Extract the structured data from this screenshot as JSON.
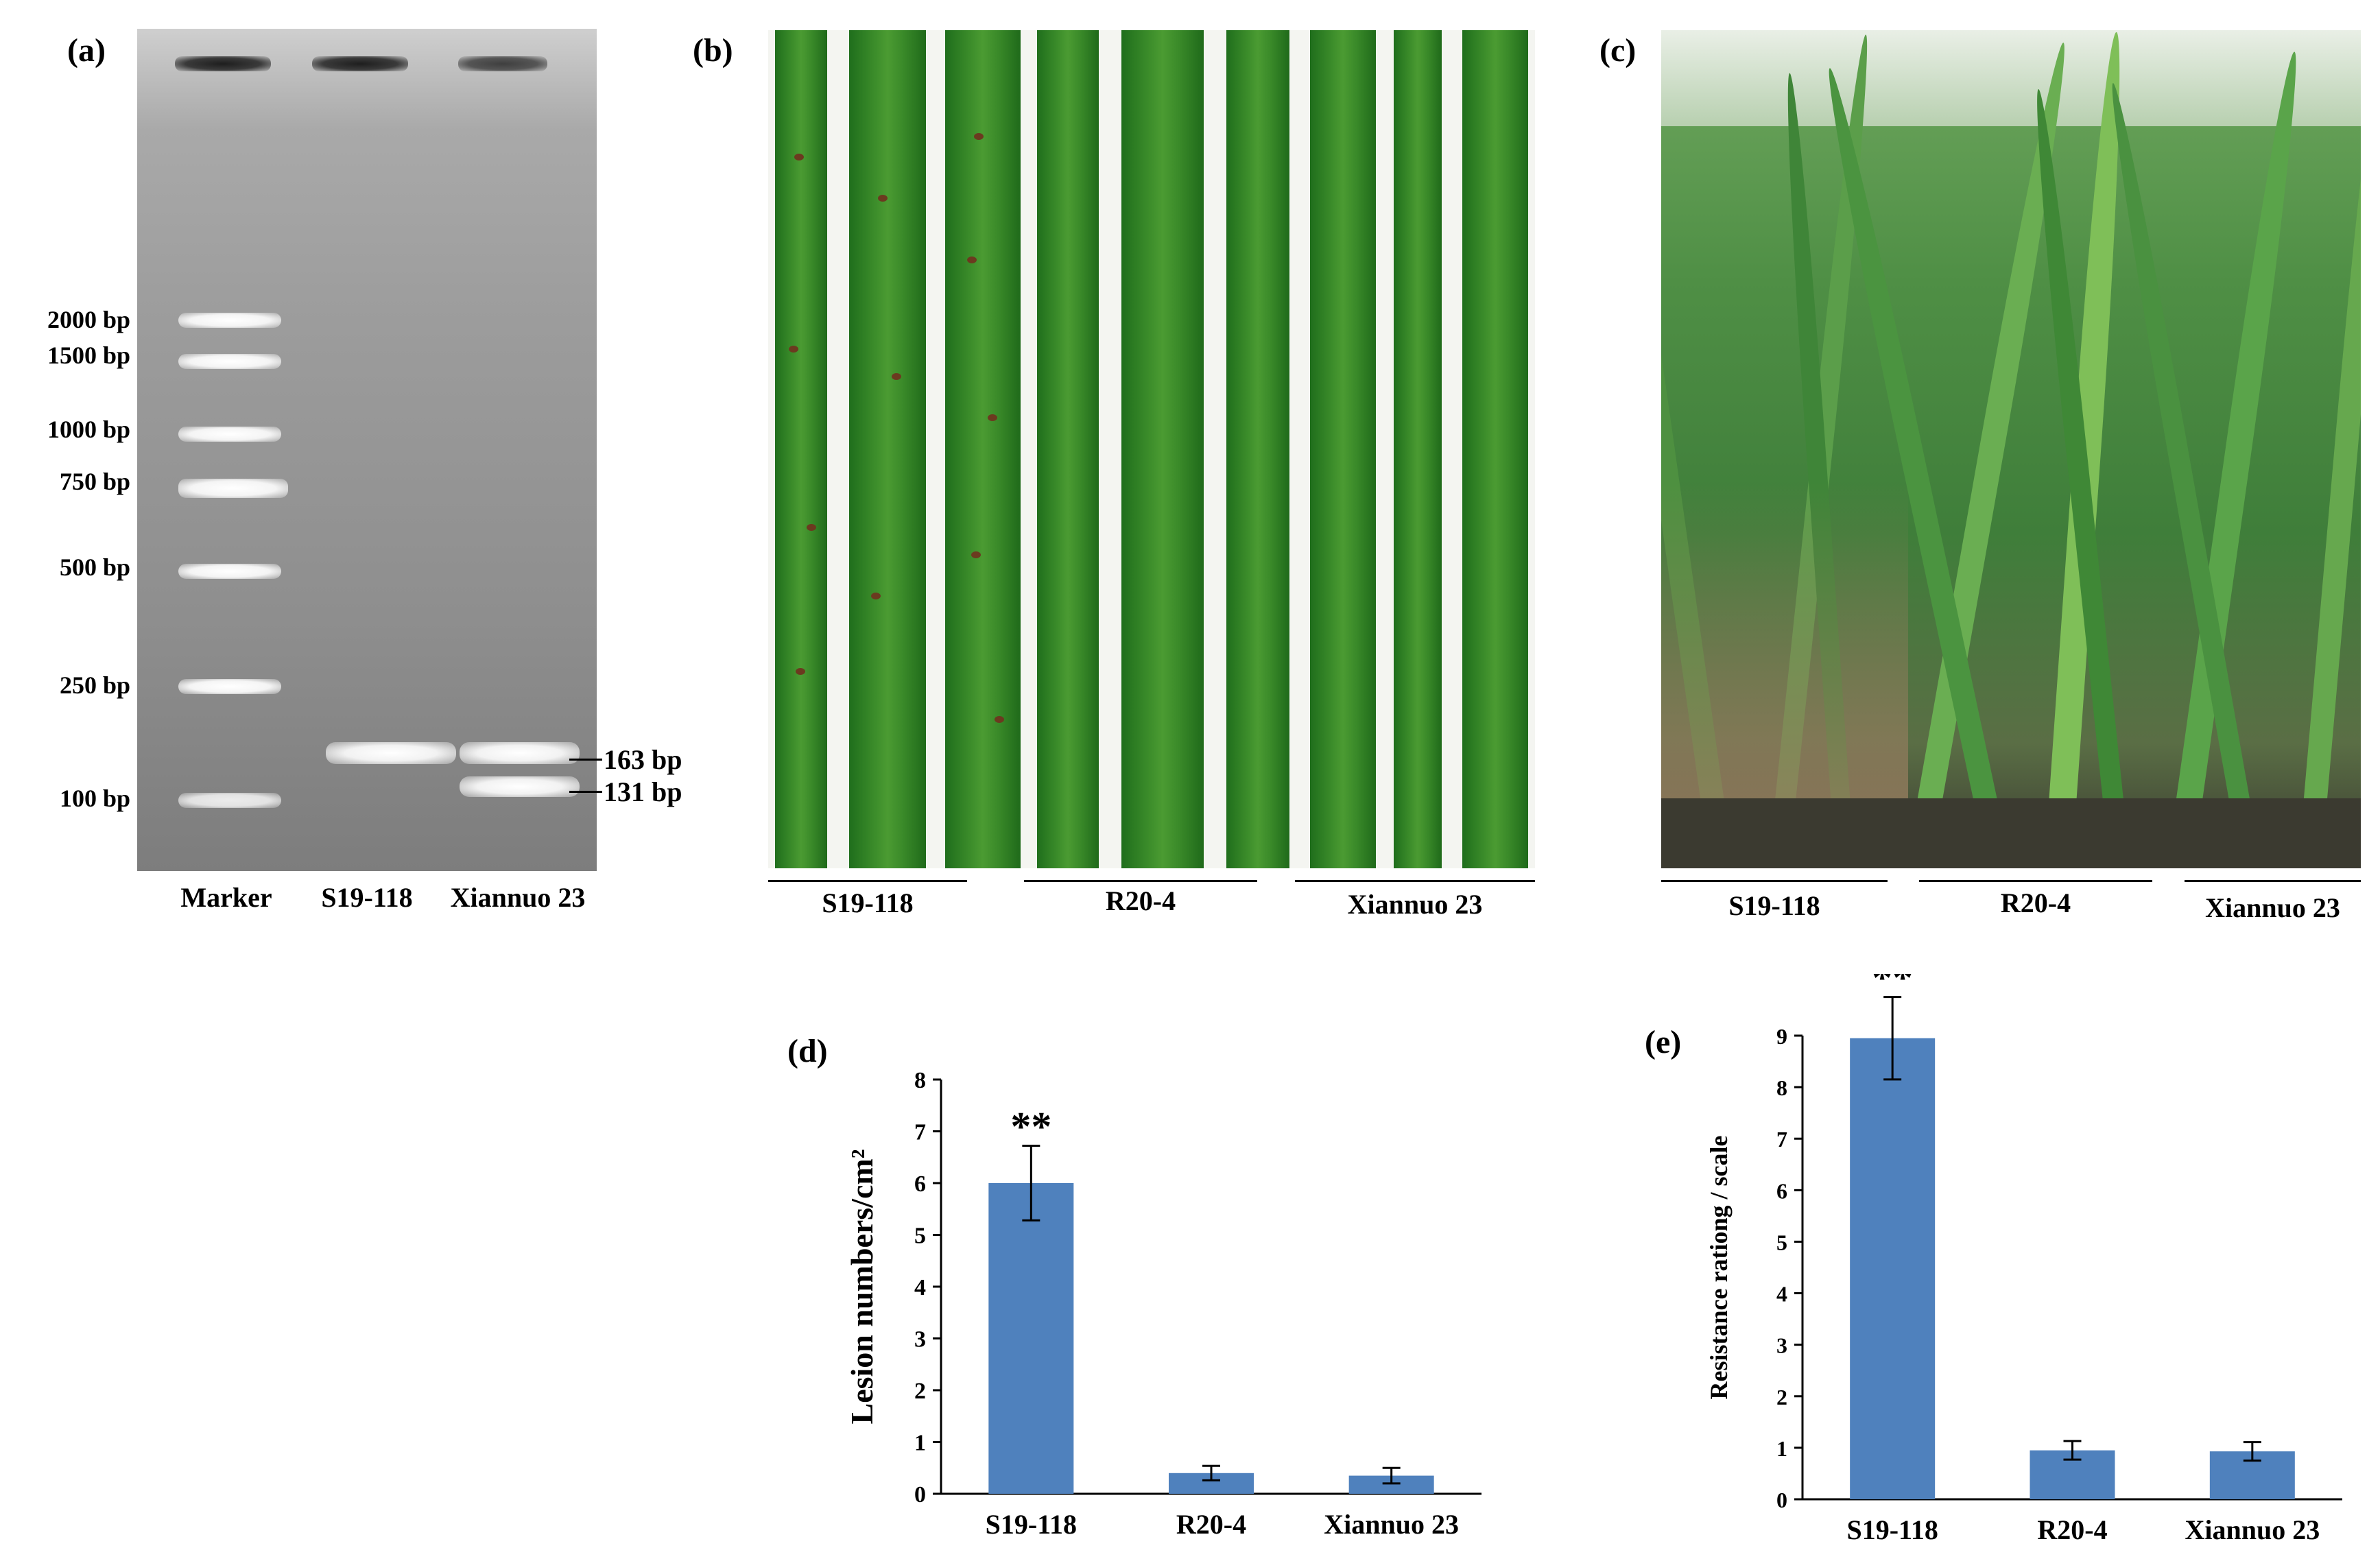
{
  "panels": {
    "a": {
      "label": "(a)",
      "marker_sizes": [
        "2000 bp",
        "1500 bp",
        "1000 bp",
        "750 bp",
        "500 bp",
        "250 bp",
        "100 bp"
      ],
      "band_labels": [
        "163 bp",
        "131 bp"
      ],
      "lanes": [
        "Marker",
        "S19-118",
        "Xiannuo 23"
      ]
    },
    "b": {
      "label": "(b)",
      "groups": [
        "S19-118",
        "R20-4",
        "Xiannuo 23"
      ]
    },
    "c": {
      "label": "(c)",
      "groups": [
        "S19-118",
        "R20-4",
        "Xiannuo 23"
      ]
    }
  },
  "chart_data": [
    {
      "type": "bar",
      "panel_label": "(d)",
      "categories": [
        "S19-118",
        "R20-4",
        "Xiannuo 23"
      ],
      "values": [
        6.0,
        0.4,
        0.35
      ],
      "errors": [
        0.72,
        0.14,
        0.15
      ],
      "significance": [
        "**",
        "",
        ""
      ],
      "ylabel": "Lesion numbers/cm²",
      "ylim": [
        0,
        8
      ],
      "yticks": [
        0,
        1,
        2,
        3,
        4,
        5,
        6,
        7,
        8
      ],
      "bar_color": "#4f81bd",
      "grid": false
    },
    {
      "type": "bar",
      "panel_label": "(e)",
      "categories": [
        "S19-118",
        "R20-4",
        "Xiannuo 23"
      ],
      "values": [
        8.95,
        0.95,
        0.93
      ],
      "errors": [
        0.8,
        0.18,
        0.18
      ],
      "significance": [
        "**",
        "",
        ""
      ],
      "ylabel": "Resistance rationg / scale",
      "ylim": [
        0,
        9
      ],
      "yticks": [
        0,
        1,
        2,
        3,
        4,
        5,
        6,
        7,
        8,
        9
      ],
      "bar_color": "#4f81bd",
      "grid": false
    }
  ]
}
